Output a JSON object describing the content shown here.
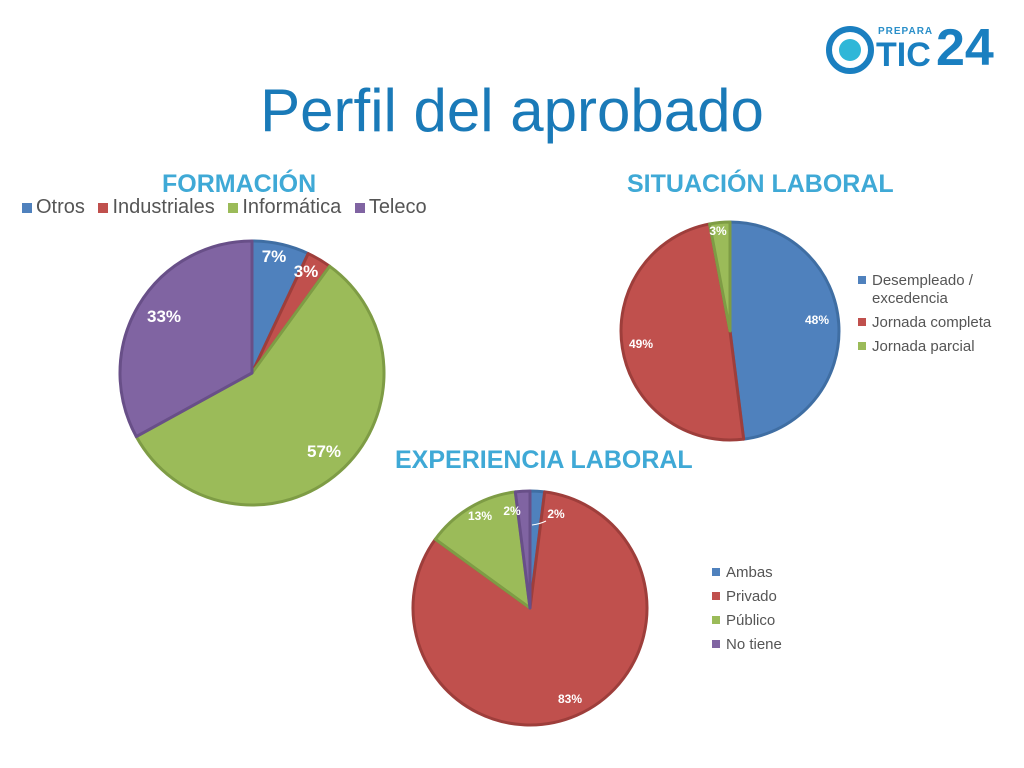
{
  "header": {
    "title": "Perfil del aprobado",
    "logo_small": "PREPARA",
    "logo_text": "TIC",
    "logo_number": "24"
  },
  "colors": {
    "blue": "#4f81bd",
    "red": "#c0504d",
    "green": "#9bbb59",
    "purple": "#8064a2",
    "title_blue": "#1a7ab8",
    "subtitle_blue": "#3fa9d6"
  },
  "chart_data": [
    {
      "type": "pie",
      "title": "FORMACIÓN",
      "categories": [
        "Otros",
        "Industriales",
        "Informática",
        "Teleco"
      ],
      "values": [
        7,
        3,
        57,
        33
      ],
      "labels": [
        "7%",
        "3%",
        "57%",
        "33%"
      ],
      "legend": "top"
    },
    {
      "type": "pie",
      "title": "SITUACIÓN LABORAL",
      "categories": [
        "Desempleado / excedencia",
        "Jornada completa",
        "Jornada parcial"
      ],
      "values": [
        48,
        49,
        3
      ],
      "labels": [
        "48%",
        "49%",
        "3%"
      ],
      "legend": "right"
    },
    {
      "type": "pie",
      "title": "EXPERIENCIA LABORAL",
      "categories": [
        "Ambas",
        "Privado",
        "Público",
        "No tiene"
      ],
      "values": [
        2,
        83,
        13,
        2
      ],
      "labels": [
        "2%",
        "83%",
        "13%",
        "2%"
      ],
      "legend": "right"
    }
  ]
}
